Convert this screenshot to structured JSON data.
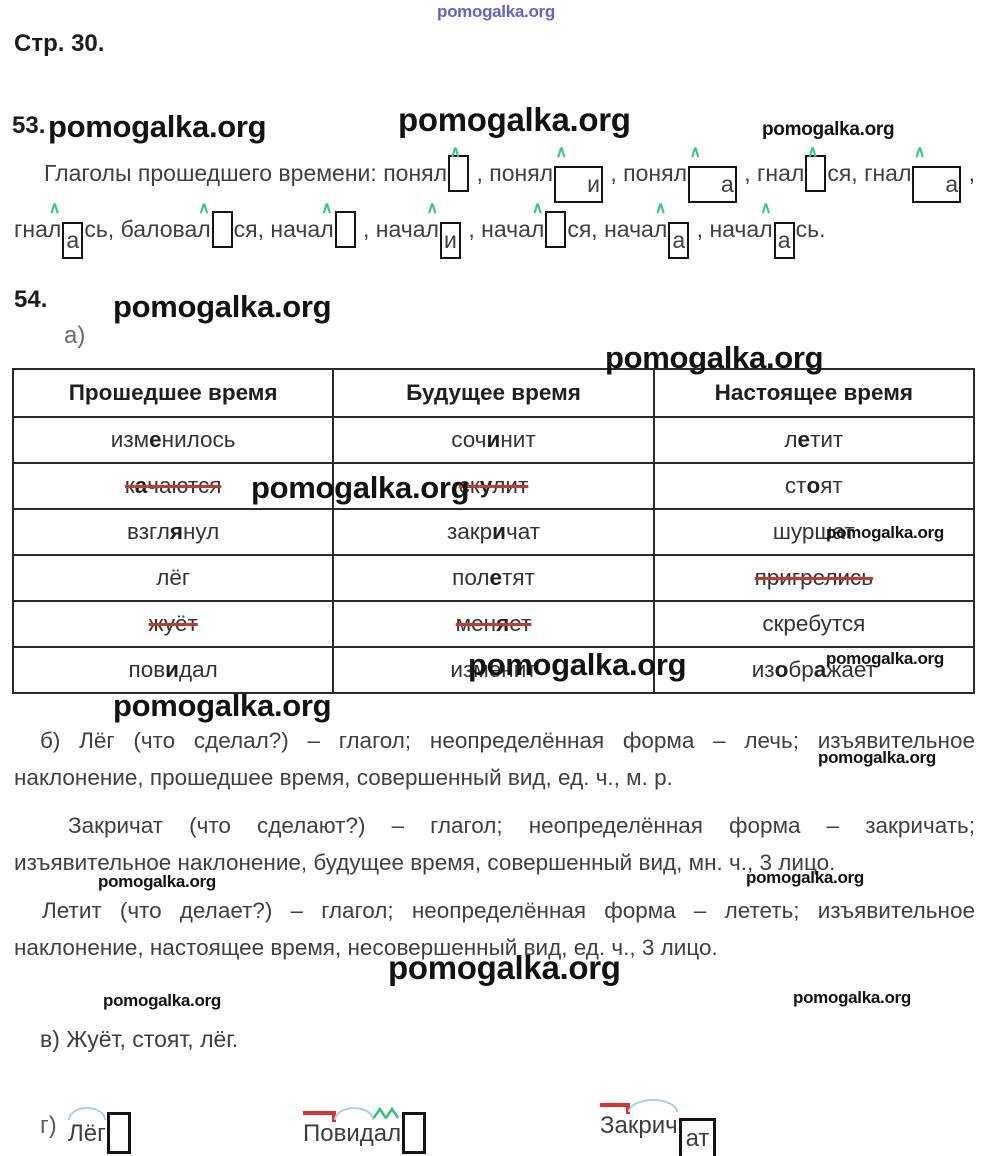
{
  "page": {
    "title": "Стр. 30."
  },
  "watermark": {
    "text": "pomogalka.org",
    "blue_color": "#5150c4",
    "black_color": "#121212"
  },
  "colors": {
    "strike_red": "#c43a2e",
    "suffix_green": "#3fc08d",
    "root_arc_blue": "#a9cfe9",
    "prefix_red": "#e03131",
    "box_border": "#141414"
  },
  "ex53": {
    "number": "53.",
    "suffix_mark": "∧",
    "line1": {
      "lead": "Глаголы прошедшего времени: ",
      "words": [
        {
          "pre": "поня",
          "l": "л",
          "box": "",
          "tail": "",
          "sep": " , "
        },
        {
          "pre": "поня",
          "l": "л",
          "box": "и",
          "tail": "",
          "sep": " , "
        },
        {
          "pre": "поня",
          "l": "л",
          "box": "а",
          "tail": "",
          "sep": " , "
        },
        {
          "pre": "гна",
          "l": "л",
          "box": "",
          "tail": "ся",
          "sep": ", "
        },
        {
          "pre": "гна",
          "l": "л",
          "box": "а",
          "tail": "",
          "sep": " ,"
        }
      ]
    },
    "line2": {
      "words": [
        {
          "pre": "гна",
          "l": "л",
          "box": "а",
          "tail": "сь",
          "sep": ", "
        },
        {
          "pre": "балова",
          "l": "л",
          "box": "",
          "tail": "ся",
          "sep": ", "
        },
        {
          "pre": "нача",
          "l": "л",
          "box": "",
          "tail": "",
          "sep": " , "
        },
        {
          "pre": "нача",
          "l": "л",
          "box": "и",
          "tail": "",
          "sep": " , "
        },
        {
          "pre": "нача",
          "l": "л",
          "box": "",
          "tail": "ся",
          "sep": ", "
        },
        {
          "pre": "нача",
          "l": "л",
          "box": "а",
          "tail": "",
          "sep": " , "
        },
        {
          "pre": "нача",
          "l": "л",
          "box": "а",
          "tail": "сь",
          "sep": "."
        }
      ]
    }
  },
  "ex54": {
    "number": "54.",
    "a_label": "а)",
    "table": {
      "headers": [
        "Прошедшее время",
        "Будущее время",
        "Настоящее время"
      ],
      "rows": [
        [
          {
            "strike": false,
            "seg": [
              {
                "t": "изм"
              },
              {
                "t": "е",
                "b": true
              },
              {
                "t": "нилось"
              }
            ]
          },
          {
            "strike": false,
            "seg": [
              {
                "t": "соч"
              },
              {
                "t": "и",
                "b": true
              },
              {
                "t": "нит"
              }
            ]
          },
          {
            "strike": false,
            "seg": [
              {
                "t": "л"
              },
              {
                "t": "е",
                "b": true
              },
              {
                "t": "тит"
              }
            ]
          }
        ],
        [
          {
            "strike": true,
            "seg": [
              {
                "t": "к"
              },
              {
                "t": "а",
                "b": true
              },
              {
                "t": "чаются"
              }
            ]
          },
          {
            "strike": true,
            "seg": [
              {
                "t": "ск"
              },
              {
                "t": "у",
                "b": true
              },
              {
                "t": "лит"
              }
            ]
          },
          {
            "strike": false,
            "seg": [
              {
                "t": "ст"
              },
              {
                "t": "о",
                "b": true
              },
              {
                "t": "ят"
              }
            ]
          }
        ],
        [
          {
            "strike": false,
            "seg": [
              {
                "t": "взгл"
              },
              {
                "t": "я",
                "b": true
              },
              {
                "t": "нул"
              }
            ]
          },
          {
            "strike": false,
            "seg": [
              {
                "t": "закр"
              },
              {
                "t": "и",
                "b": true
              },
              {
                "t": "чат"
              }
            ]
          },
          {
            "strike": false,
            "seg": [
              {
                "t": "шуршат"
              }
            ]
          }
        ],
        [
          {
            "strike": false,
            "seg": [
              {
                "t": "лёг"
              }
            ]
          },
          {
            "strike": false,
            "seg": [
              {
                "t": "пол"
              },
              {
                "t": "е",
                "b": true
              },
              {
                "t": "тят"
              }
            ]
          },
          {
            "strike": true,
            "seg": [
              {
                "t": "пригрелись"
              }
            ]
          }
        ],
        [
          {
            "strike": true,
            "seg": [
              {
                "t": "жуёт"
              }
            ]
          },
          {
            "strike": true,
            "seg": [
              {
                "t": "мен"
              },
              {
                "t": "я",
                "b": true
              },
              {
                "t": "ет"
              }
            ]
          },
          {
            "strike": false,
            "seg": [
              {
                "t": "скребутся"
              }
            ]
          }
        ],
        [
          {
            "strike": false,
            "seg": [
              {
                "t": "пов"
              },
              {
                "t": "и",
                "b": true
              },
              {
                "t": "дал"
              }
            ]
          },
          {
            "strike": false,
            "seg": [
              {
                "t": "изменит"
              }
            ]
          },
          {
            "strike": false,
            "seg": [
              {
                "t": "из"
              },
              {
                "t": "о",
                "b": true
              },
              {
                "t": "бр"
              },
              {
                "t": "а",
                "b": true
              },
              {
                "t": "жает"
              }
            ]
          }
        ]
      ]
    },
    "analysis": [
      {
        "line1": "б) Лёг (что сделал?) – глагол; неопределённая форма – лечь; изъявительное",
        "line2": "наклонение, прошедшее время, совершенный вид, ед. ч., м. р."
      },
      {
        "line1": "Закричат (что сделают?) – глагол; неопределённая форма – закричать;",
        "line2": "изъявительное наклонение, будущее время, совершенный вид, мн. ч., 3 лицо."
      },
      {
        "line1": "Летит (что делает?) – глагол; неопределённая форма – лететь; изъявительное",
        "line2": "наклонение, настоящее время, несовершенный вид, ед. ч., 3 лицо."
      }
    ],
    "v_text": "в) Жуёт, стоят, лёг.",
    "g_label": "г)",
    "g_words": [
      {
        "root": "Лёг",
        "ending": ""
      },
      {
        "prefix": "По",
        "root": "вид",
        "suffix": "ал",
        "ending": ""
      },
      {
        "prefix": "За",
        "root": "крич",
        "ending": "ат"
      }
    ]
  }
}
